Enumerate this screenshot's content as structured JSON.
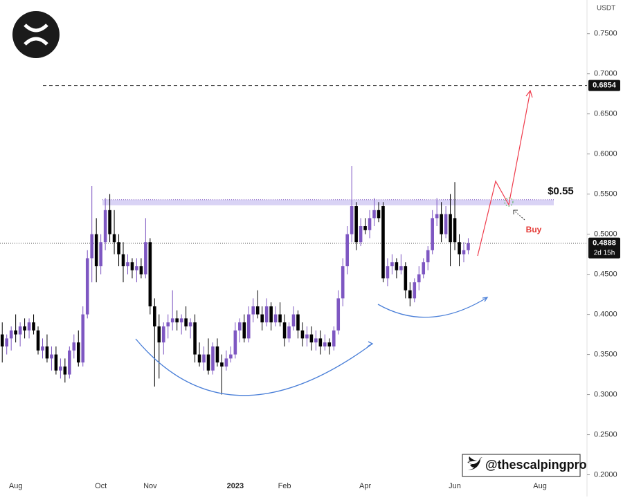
{
  "chart_data": {
    "type": "candlestick",
    "y_unit": "USDT",
    "categories": [
      null,
      null,
      null,
      "Aug",
      null,
      null,
      null,
      null,
      null,
      null,
      null,
      null,
      null,
      null,
      null,
      null,
      null,
      null,
      null,
      null,
      null,
      null,
      "Oct",
      null,
      null,
      null,
      null,
      null,
      null,
      null,
      null,
      null,
      null,
      "Nov",
      null,
      null,
      null,
      null,
      null,
      null,
      null,
      null,
      null,
      null,
      null,
      null,
      null,
      null,
      null,
      null,
      null,
      null,
      "2023",
      null,
      null,
      null,
      null,
      null,
      null,
      null,
      null,
      null,
      null,
      "Feb",
      null,
      null,
      null,
      null,
      null,
      null,
      null,
      null,
      null,
      null,
      null,
      null,
      null,
      null,
      null,
      null,
      null,
      "Apr",
      null,
      null,
      null,
      null,
      null,
      null,
      null,
      null,
      null,
      null,
      null,
      null,
      null,
      null,
      null,
      null,
      null,
      null,
      null,
      "Jun",
      null,
      null,
      null,
      null,
      null,
      null,
      null,
      null,
      null,
      null,
      null,
      null,
      null,
      null,
      null,
      null,
      null,
      null,
      "Aug",
      null,
      null,
      null,
      null,
      null,
      null,
      null,
      null,
      null,
      null
    ],
    "ohlc": [
      [
        0.375,
        0.39,
        0.34,
        0.36
      ],
      [
        0.36,
        0.375,
        0.35,
        0.37
      ],
      [
        0.37,
        0.385,
        0.355,
        0.38
      ],
      [
        0.38,
        0.4,
        0.365,
        0.375
      ],
      [
        0.375,
        0.39,
        0.36,
        0.385
      ],
      [
        0.385,
        0.395,
        0.37,
        0.38
      ],
      [
        0.38,
        0.395,
        0.37,
        0.39
      ],
      [
        0.39,
        0.4,
        0.375,
        0.38
      ],
      [
        0.38,
        0.385,
        0.35,
        0.355
      ],
      [
        0.355,
        0.37,
        0.345,
        0.36
      ],
      [
        0.36,
        0.375,
        0.34,
        0.345
      ],
      [
        0.345,
        0.36,
        0.33,
        0.35
      ],
      [
        0.35,
        0.36,
        0.325,
        0.33
      ],
      [
        0.33,
        0.345,
        0.32,
        0.335
      ],
      [
        0.335,
        0.345,
        0.315,
        0.325
      ],
      [
        0.325,
        0.36,
        0.32,
        0.355
      ],
      [
        0.355,
        0.375,
        0.345,
        0.365
      ],
      [
        0.365,
        0.38,
        0.335,
        0.34
      ],
      [
        0.34,
        0.41,
        0.335,
        0.4
      ],
      [
        0.4,
        0.48,
        0.395,
        0.47
      ],
      [
        0.47,
        0.56,
        0.44,
        0.5
      ],
      [
        0.5,
        0.52,
        0.44,
        0.46
      ],
      [
        0.46,
        0.5,
        0.45,
        0.49
      ],
      [
        0.49,
        0.545,
        0.48,
        0.53
      ],
      [
        0.53,
        0.55,
        0.49,
        0.5
      ],
      [
        0.5,
        0.53,
        0.475,
        0.49
      ],
      [
        0.49,
        0.5,
        0.46,
        0.475
      ],
      [
        0.475,
        0.49,
        0.44,
        0.46
      ],
      [
        0.46,
        0.475,
        0.45,
        0.465
      ],
      [
        0.465,
        0.47,
        0.445,
        0.455
      ],
      [
        0.455,
        0.47,
        0.44,
        0.46
      ],
      [
        0.46,
        0.47,
        0.445,
        0.45
      ],
      [
        0.45,
        0.52,
        0.445,
        0.49
      ],
      [
        0.49,
        0.495,
        0.4,
        0.41
      ],
      [
        0.41,
        0.42,
        0.31,
        0.385
      ],
      [
        0.385,
        0.4,
        0.32,
        0.365
      ],
      [
        0.365,
        0.39,
        0.35,
        0.385
      ],
      [
        0.385,
        0.4,
        0.37,
        0.39
      ],
      [
        0.39,
        0.43,
        0.38,
        0.395
      ],
      [
        0.395,
        0.405,
        0.38,
        0.39
      ],
      [
        0.39,
        0.4,
        0.375,
        0.395
      ],
      [
        0.395,
        0.41,
        0.38,
        0.385
      ],
      [
        0.385,
        0.395,
        0.37,
        0.39
      ],
      [
        0.39,
        0.4,
        0.34,
        0.35
      ],
      [
        0.35,
        0.365,
        0.335,
        0.34
      ],
      [
        0.34,
        0.36,
        0.33,
        0.35
      ],
      [
        0.35,
        0.37,
        0.325,
        0.33
      ],
      [
        0.33,
        0.365,
        0.325,
        0.36
      ],
      [
        0.36,
        0.37,
        0.335,
        0.34
      ],
      [
        0.34,
        0.35,
        0.3,
        0.335
      ],
      [
        0.335,
        0.355,
        0.33,
        0.345
      ],
      [
        0.345,
        0.36,
        0.34,
        0.35
      ],
      [
        0.35,
        0.39,
        0.345,
        0.38
      ],
      [
        0.38,
        0.395,
        0.365,
        0.39
      ],
      [
        0.39,
        0.4,
        0.365,
        0.37
      ],
      [
        0.37,
        0.41,
        0.365,
        0.4
      ],
      [
        0.4,
        0.42,
        0.39,
        0.41
      ],
      [
        0.41,
        0.43,
        0.395,
        0.4
      ],
      [
        0.4,
        0.41,
        0.38,
        0.39
      ],
      [
        0.39,
        0.42,
        0.385,
        0.41
      ],
      [
        0.41,
        0.415,
        0.38,
        0.39
      ],
      [
        0.39,
        0.41,
        0.385,
        0.4
      ],
      [
        0.4,
        0.415,
        0.385,
        0.39
      ],
      [
        0.39,
        0.4,
        0.36,
        0.37
      ],
      [
        0.37,
        0.39,
        0.365,
        0.385
      ],
      [
        0.385,
        0.41,
        0.38,
        0.4
      ],
      [
        0.4,
        0.405,
        0.37,
        0.38
      ],
      [
        0.38,
        0.39,
        0.36,
        0.37
      ],
      [
        0.37,
        0.385,
        0.36,
        0.375
      ],
      [
        0.375,
        0.385,
        0.355,
        0.365
      ],
      [
        0.365,
        0.38,
        0.355,
        0.37
      ],
      [
        0.37,
        0.38,
        0.35,
        0.36
      ],
      [
        0.36,
        0.375,
        0.355,
        0.365
      ],
      [
        0.365,
        0.37,
        0.35,
        0.36
      ],
      [
        0.36,
        0.385,
        0.355,
        0.38
      ],
      [
        0.38,
        0.43,
        0.375,
        0.42
      ],
      [
        0.42,
        0.47,
        0.41,
        0.46
      ],
      [
        0.46,
        0.51,
        0.45,
        0.5
      ],
      [
        0.5,
        0.585,
        0.49,
        0.535
      ],
      [
        0.535,
        0.54,
        0.48,
        0.49
      ],
      [
        0.49,
        0.52,
        0.485,
        0.51
      ],
      [
        0.51,
        0.52,
        0.5,
        0.505
      ],
      [
        0.505,
        0.53,
        0.495,
        0.52
      ],
      [
        0.52,
        0.545,
        0.51,
        0.53
      ],
      [
        0.53,
        0.54,
        0.515,
        0.52
      ],
      [
        0.535,
        0.54,
        0.44,
        0.445
      ],
      [
        0.445,
        0.47,
        0.435,
        0.46
      ],
      [
        0.46,
        0.475,
        0.45,
        0.465
      ],
      [
        0.465,
        0.47,
        0.445,
        0.455
      ],
      [
        0.455,
        0.475,
        0.45,
        0.46
      ],
      [
        0.46,
        0.465,
        0.42,
        0.43
      ],
      [
        0.43,
        0.44,
        0.41,
        0.42
      ],
      [
        0.42,
        0.445,
        0.415,
        0.44
      ],
      [
        0.44,
        0.46,
        0.43,
        0.45
      ],
      [
        0.45,
        0.47,
        0.445,
        0.465
      ],
      [
        0.465,
        0.485,
        0.455,
        0.48
      ],
      [
        0.48,
        0.53,
        0.475,
        0.52
      ],
      [
        0.52,
        0.545,
        0.51,
        0.525
      ],
      [
        0.525,
        0.54,
        0.49,
        0.5
      ],
      [
        0.5,
        0.535,
        0.495,
        0.525
      ],
      [
        0.525,
        0.55,
        0.46,
        0.49
      ],
      [
        0.52,
        0.565,
        0.48,
        0.49
      ],
      [
        0.49,
        0.5,
        0.46,
        0.475
      ],
      [
        0.475,
        0.49,
        0.465,
        0.48
      ],
      [
        0.48,
        0.495,
        0.475,
        0.4888
      ],
      null,
      null,
      null,
      null,
      null,
      null,
      null,
      null,
      null,
      null,
      null,
      null,
      null,
      null,
      null,
      null,
      null,
      null,
      null,
      null,
      null,
      null,
      null,
      null,
      null,
      null
    ],
    "up_color": "#7e57c2",
    "down_color": "#000000",
    "ylim": [
      0.197,
      0.792
    ],
    "yticks": [
      {
        "value": 0.2,
        "label": "0.2000"
      },
      {
        "value": 0.25,
        "label": "0.2500"
      },
      {
        "value": 0.3,
        "label": "0.3000"
      },
      {
        "value": 0.35,
        "label": "0.3500"
      },
      {
        "value": 0.4,
        "label": "0.4000"
      },
      {
        "value": 0.45,
        "label": "0.4500"
      },
      {
        "value": 0.5,
        "label": "0.5000"
      },
      {
        "value": 0.55,
        "label": "0.5500"
      },
      {
        "value": 0.6,
        "label": "0.6000"
      },
      {
        "value": 0.65,
        "label": "0.6500"
      },
      {
        "value": 0.7,
        "label": "0.7000"
      },
      {
        "value": 0.75,
        "label": "0.7500"
      }
    ],
    "grid": false,
    "resistance_zone": [
      0.536,
      0.543
    ],
    "target_level": 0.6854,
    "last_price": 0.4888,
    "countdown": "2d 15h",
    "annotations": [
      "$0.55",
      "Buy"
    ],
    "watermark": "@thescalpingpro"
  }
}
